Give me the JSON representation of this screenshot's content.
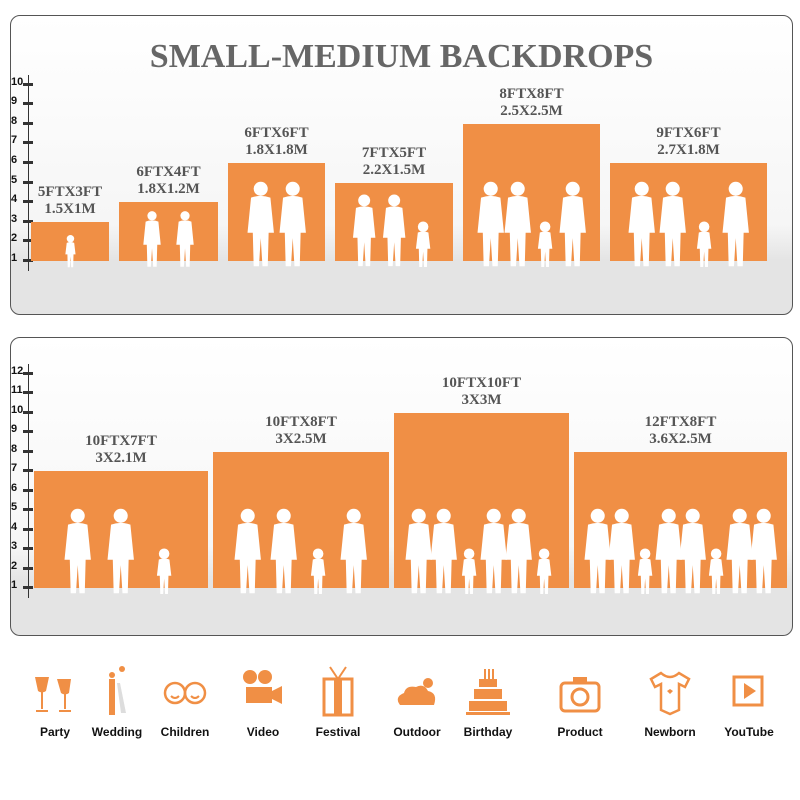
{
  "title": "SMALL-MEDIUM BACKDROPS",
  "colors": {
    "bar": "#f08f45",
    "icon": "#f08f45",
    "title": "#666666"
  },
  "panel1": {
    "ticks": [
      "1",
      "2",
      "3",
      "4",
      "5",
      "6",
      "7",
      "8",
      "9",
      "10"
    ],
    "bars": [
      {
        "ft": "5FTX3FT",
        "m": "1.5X1M",
        "height_ft": 3,
        "people": 1
      },
      {
        "ft": "6FTX4FT",
        "m": "1.8X1.2M",
        "height_ft": 4,
        "people": 2
      },
      {
        "ft": "6FTX6FT",
        "m": "1.8X1.8M",
        "height_ft": 6,
        "people": 2
      },
      {
        "ft": "7FTX5FT",
        "m": "2.2X1.5M",
        "height_ft": 5,
        "people": 3
      },
      {
        "ft": "8FTX8FT",
        "m": "2.5X2.5M",
        "height_ft": 8,
        "people": 4
      },
      {
        "ft": "9FTX6FT",
        "m": "2.7X1.8M",
        "height_ft": 6,
        "people": 4
      }
    ]
  },
  "panel2": {
    "ticks": [
      "1",
      "2",
      "3",
      "4",
      "5",
      "6",
      "7",
      "8",
      "9",
      "10",
      "11",
      "12"
    ],
    "bars": [
      {
        "ft": "10FTX7FT",
        "m": "3X2.1M",
        "height_ft": 7,
        "people": 3
      },
      {
        "ft": "10FTX8FT",
        "m": "3X2.5M",
        "height_ft": 8,
        "people": 4
      },
      {
        "ft": "10FTX10FT",
        "m": "3X3M",
        "height_ft": 10,
        "people": 6
      },
      {
        "ft": "12FTX8FT",
        "m": "3.6X2.5M",
        "height_ft": 8,
        "people": 8
      }
    ]
  },
  "uses": [
    {
      "label": "Party",
      "icon": "champagne-glasses-icon"
    },
    {
      "label": "Wedding",
      "icon": "wedding-couple-icon"
    },
    {
      "label": "Children",
      "icon": "children-faces-icon"
    },
    {
      "label": "Video",
      "icon": "film-camera-icon"
    },
    {
      "label": "Festival",
      "icon": "gift-box-icon"
    },
    {
      "label": "Outdoor",
      "icon": "cloud-icon"
    },
    {
      "label": "Birthday",
      "icon": "birthday-cake-icon"
    },
    {
      "label": "Product",
      "icon": "camera-icon"
    },
    {
      "label": "Newborn",
      "icon": "baby-onesie-icon"
    },
    {
      "label": "YouTube",
      "icon": "play-button-icon"
    }
  ]
}
